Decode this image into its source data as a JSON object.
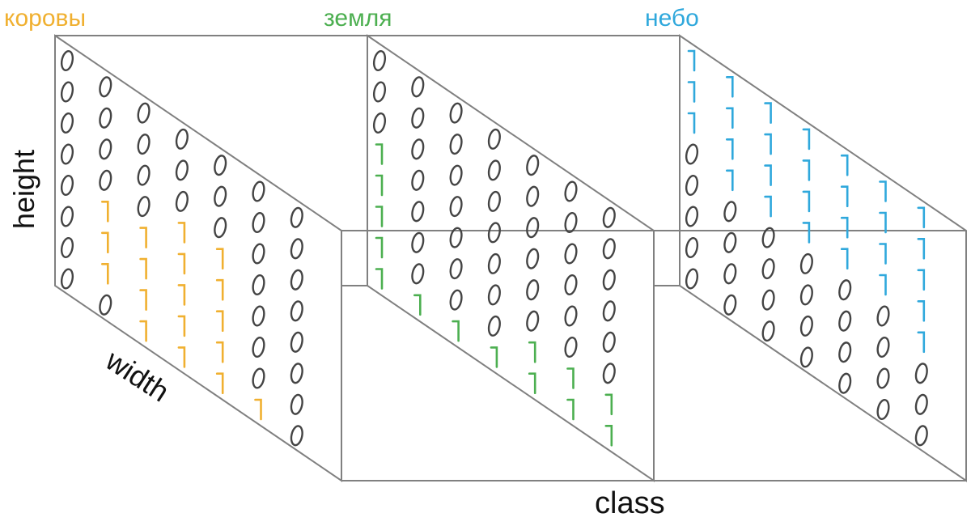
{
  "labels": {
    "class0": "коровы",
    "class1": "земля",
    "class2": "небо",
    "height": "height",
    "width": "width",
    "class": "class"
  },
  "colors": {
    "class0": "#f0b030",
    "class1": "#4caf50",
    "class2": "#2fa8dc",
    "zero": "#444444",
    "edge": "#808080",
    "axis_text": "#111111"
  },
  "glyphs": {
    "zero": "0",
    "one": "1"
  },
  "grids": [
    {
      "name": "коровы",
      "rows": [
        "0000000",
        "0000000",
        "0000000",
        "0001100",
        "0111100",
        "0111100",
        "0111100",
        "0011110"
      ]
    },
    {
      "name": "земля",
      "rows": [
        "0000000",
        "0000000",
        "0000000",
        "1000000",
        "1000000",
        "1000000",
        "1000111",
        "1111111"
      ]
    },
    {
      "name": "небо",
      "rows": [
        "1111111",
        "1111111",
        "1111111",
        "0111111",
        "0000001",
        "0000000",
        "0000000",
        "0000000"
      ]
    }
  ]
}
